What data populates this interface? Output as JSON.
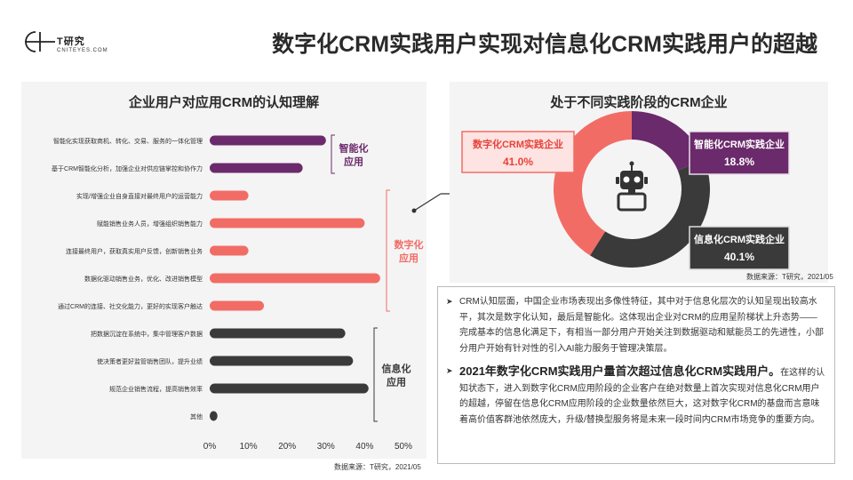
{
  "brand": {
    "name": "T研究",
    "sub": "CNITEYES.COM"
  },
  "page_title": "数字化CRM实践用户实现对信息化CRM实践用户的超越",
  "left_panel": {
    "title": "企业用户对应用CRM的认知理解",
    "source": "数据来源：T研究，2021/05"
  },
  "right_panel": {
    "title": "处于不同实践阶段的CRM企业",
    "source": "数据来源：T研究，2021/05",
    "center_icon": "robot-icon"
  },
  "colors": {
    "purple": "#6b2a6b",
    "coral": "#f26c66",
    "dark": "#3a3a3a",
    "accent_red": "#e8423a"
  },
  "chart_data": [
    {
      "type": "bar",
      "orientation": "horizontal",
      "categories": [
        "智能化实现获取商机、转化、交易、服务的一体化管理",
        "基于CRM智能化分析，加强企业对供应链掌控和协作力",
        "实现/增强企业自身直接对最终用户的运营能力",
        "赋能销售业务人员，增强组织销售能力",
        "连接最终用户，获取真实用户反馈，创新销售业务",
        "数据化驱动销售业务，优化、改进销售模型",
        "通过CRM的连接、社交化能力，更好的实现客户触达",
        "把数据沉淀在系统中，集中管理客户数据",
        "使决策者更好监管销售团队，提升业绩",
        "规范企业销售流程，提高销售效率",
        "其他"
      ],
      "values": [
        30,
        24,
        10,
        40,
        10,
        44,
        14,
        35,
        37,
        41,
        2
      ],
      "groups": [
        {
          "label": "智能化应用",
          "color": "#6b2a6b",
          "items": [
            0,
            1
          ]
        },
        {
          "label": "数字化应用",
          "color": "#f26c66",
          "items": [
            2,
            3,
            4,
            5,
            6
          ]
        },
        {
          "label": "信息化应用",
          "color": "#3a3a3a",
          "items": [
            7,
            8,
            9,
            10
          ]
        }
      ],
      "xlim": [
        0,
        50
      ],
      "xticks": [
        "0%",
        "10%",
        "20%",
        "30%",
        "40%",
        "50%"
      ],
      "grid": false
    },
    {
      "type": "pie",
      "variant": "donut",
      "slices": [
        {
          "label": "智能化CRM实践企业",
          "display": "18.8%",
          "value": 18.8,
          "color": "#6b2a6b"
        },
        {
          "label": "信息化CRM实践企业",
          "display": "40.1%",
          "value": 40.1,
          "color": "#3a3a3a"
        },
        {
          "label": "数字化CRM实践企业",
          "display": "41.0%",
          "value": 41.0,
          "color": "#f26c66"
        }
      ]
    }
  ],
  "paragraphs": [
    {
      "text": "CRM认知层面，中国企业市场表现出多像性特征，其中对于信息化层次的认知呈现出较高水平，其次是数字化认知，最后是智能化。这体现出企业对CRM的应用呈阶梯状上升态势——完成基本的信息化满足下，有相当一部分用户开始关注到数据驱动和赋能员工的先进性，小部分用户开始有针对性的引入AI能力服务于管理决策层。"
    },
    {
      "highlight": "2021年数字化CRM实践用户量首次超过信息化CRM实践用户。",
      "text": "在这样的认知状态下，进入到数字化CRM应用阶段的企业客户在绝对数量上首次实现对信息化CRM用户的超越，停留在信息化CRM应用阶段的企业数量依然巨大，这对数字化CRM的基盘而言意味着高价值客群池依然庞大，升级/替换型服务将是未来一段时间内CRM市场竞争的重要方向。"
    }
  ]
}
